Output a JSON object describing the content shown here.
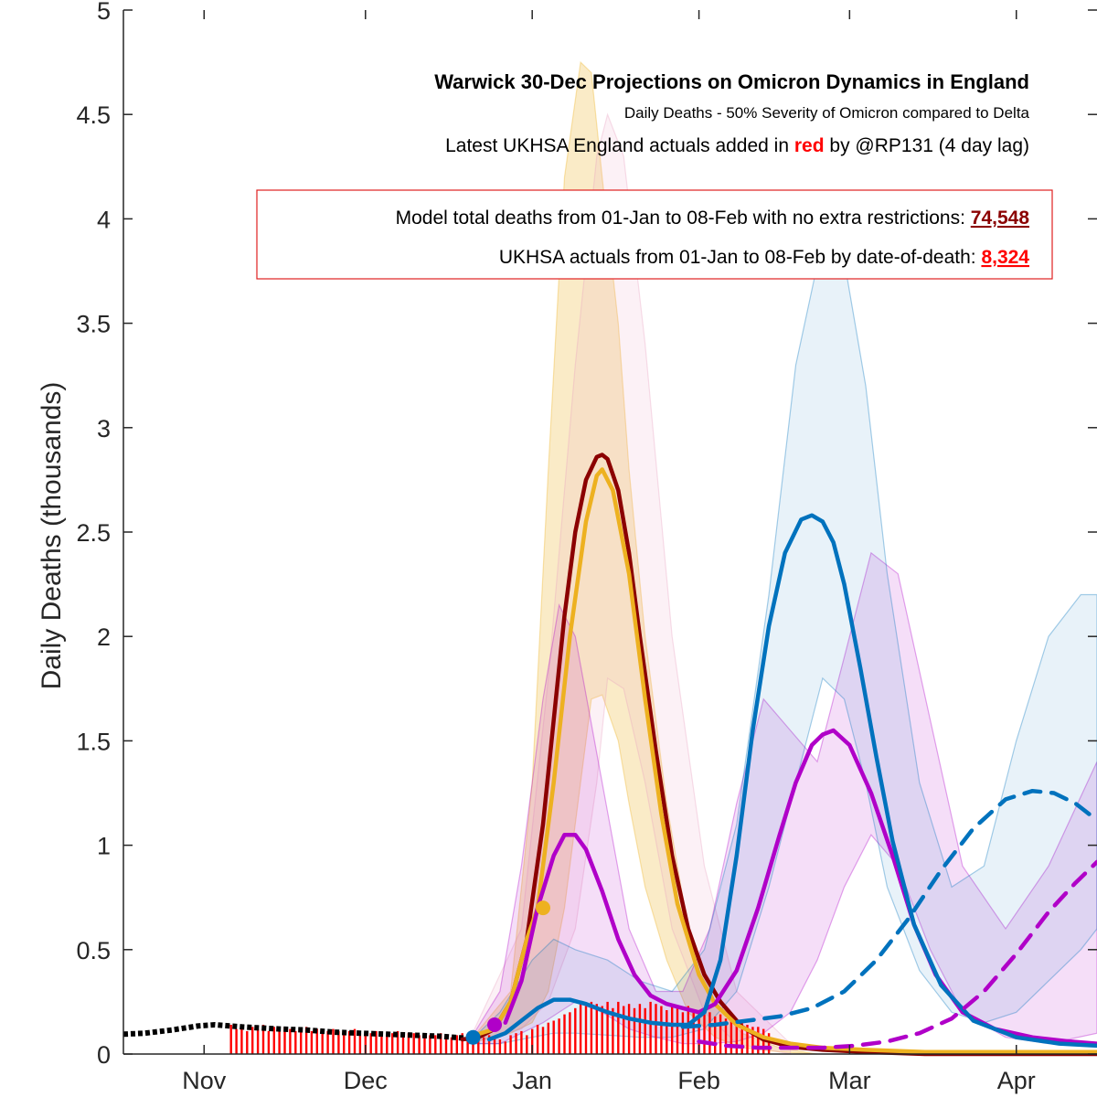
{
  "chart_data": {
    "type": "line",
    "title": "Warwick 30-Dec Projections on Omicron Dynamics in England",
    "subtitle": "Daily Deaths - 50% Severity of Omicron compared to Delta",
    "note": {
      "before": "Latest UKHSA England actuals added in ",
      "highlight": "red",
      "after": " by @RP131 (4 day lag)"
    },
    "summary": {
      "model_label": "Model total deaths from 01-Jan to 08-Feb with no extra restrictions: ",
      "model_value": "74,548",
      "actual_label": "UKHSA actuals from 01-Jan to 08-Feb by date-of-death: ",
      "actual_value": "8,324"
    },
    "xlabel": "",
    "ylabel": "Daily Deaths (thousands)",
    "ylim": [
      0,
      5
    ],
    "yticks": [
      0,
      0.5,
      1,
      1.5,
      2,
      2.5,
      3,
      3.5,
      4,
      4.5,
      5
    ],
    "ytick_labels": [
      "0",
      "0.5",
      "1",
      "1.5",
      "2",
      "2.5",
      "3",
      "3.5",
      "4",
      "4.5",
      "5"
    ],
    "x_unit": "days since 1 Oct 2021",
    "xlim": [
      16,
      197
    ],
    "xticks": [
      31,
      61,
      92,
      123,
      151,
      182
    ],
    "xtick_labels": [
      "Nov",
      "Dec",
      "Jan",
      "Feb",
      "Mar",
      "Apr"
    ],
    "grid": false,
    "colors": {
      "dark_red": "#8b0000",
      "orange": "#edb120",
      "blue": "#0072bd",
      "purple": "#b000c8",
      "actuals": "#ff0000",
      "historic": "#000000"
    },
    "historic_series": {
      "name": "historic (black)",
      "x": [
        16,
        20,
        25,
        30,
        33,
        38,
        45,
        50,
        55,
        60,
        65,
        70,
        75,
        80,
        82
      ],
      "values": [
        0.095,
        0.1,
        0.115,
        0.135,
        0.14,
        0.13,
        0.12,
        0.115,
        0.105,
        0.1,
        0.095,
        0.09,
        0.085,
        0.075,
        0.07
      ]
    },
    "actuals_bars": {
      "name": "UKHSA actuals (red)",
      "x_start": 36,
      "values": [
        0.14,
        0.12,
        0.14,
        0.11,
        0.13,
        0.12,
        0.14,
        0.11,
        0.13,
        0.12,
        0.13,
        0.12,
        0.11,
        0.12,
        0.13,
        0.11,
        0.12,
        0.12,
        0.11,
        0.12,
        0.11,
        0.1,
        0.11,
        0.12,
        0.1,
        0.11,
        0.1,
        0.11,
        0.1,
        0.09,
        0.1,
        0.11,
        0.09,
        0.1,
        0.1,
        0.09,
        0.1,
        0.09,
        0.09,
        0.1,
        0.09,
        0.08,
        0.09,
        0.1,
        0.08,
        0.08,
        0.07,
        0.08,
        0.09,
        0.08,
        0.07,
        0.06,
        0.09,
        0.1,
        0.11,
        0.09,
        0.12,
        0.14,
        0.13,
        0.15,
        0.16,
        0.17,
        0.19,
        0.2,
        0.22,
        0.24,
        0.23,
        0.25,
        0.24,
        0.23,
        0.25,
        0.22,
        0.25,
        0.23,
        0.24,
        0.22,
        0.24,
        0.22,
        0.25,
        0.24,
        0.23,
        0.21,
        0.24,
        0.22,
        0.2,
        0.23,
        0.2,
        0.21,
        0.19,
        0.2,
        0.18,
        0.19,
        0.17,
        0.18,
        0.16,
        0.15,
        0.14,
        0.13,
        0.13,
        0.12,
        0.1
      ]
    },
    "bands": [
      {
        "color": "#edb120",
        "opacity": 0.25,
        "x": [
          80,
          88,
          92,
          95,
          98,
          101,
          103,
          105,
          108,
          110,
          113,
          117,
          121,
          126,
          131,
          138,
          145
        ],
        "upper": [
          0.05,
          0.3,
          1.3,
          2.8,
          4.2,
          4.75,
          4.7,
          4.2,
          3.5,
          2.8,
          2.0,
          1.2,
          0.6,
          0.25,
          0.1,
          0.03,
          0.0
        ],
        "lower": [
          0.05,
          0.1,
          0.15,
          0.3,
          0.7,
          1.3,
          1.7,
          1.72,
          1.5,
          1.2,
          0.8,
          0.45,
          0.2,
          0.08,
          0.03,
          0.01,
          0.0
        ]
      },
      {
        "color": "#e8a0c0",
        "opacity": 0.15,
        "x": [
          80,
          90,
          95,
          100,
          104,
          106,
          109,
          113,
          118,
          124,
          130,
          140
        ],
        "upper": [
          0.05,
          0.6,
          1.8,
          3.3,
          4.3,
          4.5,
          4.3,
          3.4,
          2.0,
          0.9,
          0.3,
          0.05
        ],
        "lower": [
          0.05,
          0.12,
          0.25,
          0.6,
          1.3,
          1.8,
          1.75,
          1.3,
          0.6,
          0.2,
          0.05,
          0.0
        ]
      },
      {
        "color": "#b000c8",
        "opacity": 0.13,
        "x": [
          80,
          86,
          90,
          94,
          97,
          100,
          105,
          110,
          115,
          120,
          125,
          130,
          135,
          140,
          145,
          150,
          155,
          160,
          166,
          172,
          180,
          188,
          197
        ],
        "upper": [
          0.05,
          0.3,
          0.9,
          1.7,
          2.15,
          2.0,
          1.3,
          0.6,
          0.3,
          0.3,
          0.6,
          1.2,
          1.7,
          1.55,
          1.4,
          1.9,
          2.4,
          2.3,
          1.6,
          0.9,
          0.6,
          0.9,
          1.4
        ],
        "lower": [
          0.05,
          0.05,
          0.1,
          0.15,
          0.2,
          0.25,
          0.2,
          0.12,
          0.08,
          0.05,
          0.05,
          0.06,
          0.1,
          0.2,
          0.45,
          0.8,
          1.05,
          0.9,
          0.5,
          0.2,
          0.08,
          0.05,
          0.1
        ]
      },
      {
        "color": "#0072bd",
        "opacity": 0.09,
        "x": [
          80,
          86,
          92,
          96,
          100,
          106,
          112,
          118,
          124,
          130,
          136,
          141,
          146,
          150,
          154,
          158,
          164,
          170,
          176,
          182,
          188,
          194,
          197
        ],
        "upper": [
          0.05,
          0.2,
          0.45,
          0.55,
          0.5,
          0.45,
          0.35,
          0.3,
          0.5,
          1.1,
          2.2,
          3.3,
          3.9,
          3.8,
          3.2,
          2.3,
          1.3,
          0.8,
          0.9,
          1.5,
          2.0,
          2.2,
          2.2
        ],
        "lower": [
          0.05,
          0.05,
          0.08,
          0.1,
          0.1,
          0.09,
          0.08,
          0.08,
          0.12,
          0.3,
          0.8,
          1.3,
          1.8,
          1.7,
          1.3,
          0.8,
          0.4,
          0.2,
          0.15,
          0.2,
          0.35,
          0.5,
          0.6
        ]
      }
    ],
    "series": [
      {
        "name": "dark red",
        "color": "#8b0000",
        "dash": false,
        "x": [
          79,
          82,
          85,
          88,
          91,
          94,
          96,
          98,
          100,
          102,
          104,
          105,
          106,
          108,
          110,
          112,
          115,
          118,
          121,
          124,
          127,
          131,
          135,
          140,
          146,
          154,
          165,
          180,
          197
        ],
        "values": [
          0.07,
          0.08,
          0.12,
          0.25,
          0.55,
          1.1,
          1.6,
          2.1,
          2.5,
          2.75,
          2.86,
          2.87,
          2.85,
          2.7,
          2.4,
          2.0,
          1.45,
          0.95,
          0.6,
          0.38,
          0.25,
          0.13,
          0.07,
          0.035,
          0.02,
          0.01,
          0.0,
          0.0,
          0.0
        ]
      },
      {
        "name": "orange",
        "color": "#edb120",
        "dash": false,
        "x": [
          80,
          85,
          88,
          91,
          93,
          96,
          99,
          102,
          104,
          105,
          107,
          110,
          113,
          116,
          119,
          123,
          126,
          130,
          135,
          140,
          146,
          154,
          165,
          180,
          197
        ],
        "values": [
          0.08,
          0.12,
          0.25,
          0.55,
          0.7,
          1.3,
          2.0,
          2.55,
          2.77,
          2.8,
          2.7,
          2.3,
          1.7,
          1.15,
          0.72,
          0.38,
          0.24,
          0.14,
          0.08,
          0.05,
          0.03,
          0.02,
          0.01,
          0.01,
          0.01
        ]
      },
      {
        "name": "purple",
        "color": "#b000c8",
        "dash": false,
        "x": [
          87,
          90,
          93,
          96,
          98,
          100,
          102,
          105,
          108,
          111,
          114,
          117,
          120,
          123,
          126,
          130,
          134,
          138,
          141,
          144,
          146,
          148,
          151,
          155,
          159,
          163,
          167,
          172,
          178,
          185,
          192,
          197
        ],
        "values": [
          0.15,
          0.35,
          0.7,
          0.95,
          1.05,
          1.05,
          0.98,
          0.78,
          0.55,
          0.38,
          0.28,
          0.24,
          0.22,
          0.2,
          0.24,
          0.4,
          0.7,
          1.05,
          1.3,
          1.48,
          1.53,
          1.55,
          1.48,
          1.25,
          0.95,
          0.62,
          0.38,
          0.2,
          0.12,
          0.08,
          0.06,
          0.05
        ]
      },
      {
        "name": "blue",
        "color": "#0072bd",
        "dash": false,
        "x": [
          84,
          87,
          90,
          93,
          96,
          99,
          102,
          106,
          110,
          114,
          118,
          121,
          124,
          127,
          130,
          133,
          136,
          139,
          142,
          144,
          146,
          148,
          150,
          153,
          156,
          159,
          163,
          168,
          174,
          182,
          190,
          197
        ],
        "values": [
          0.07,
          0.1,
          0.16,
          0.22,
          0.26,
          0.26,
          0.24,
          0.2,
          0.17,
          0.15,
          0.14,
          0.14,
          0.2,
          0.45,
          0.95,
          1.55,
          2.05,
          2.4,
          2.56,
          2.58,
          2.55,
          2.45,
          2.25,
          1.85,
          1.42,
          1.02,
          0.62,
          0.33,
          0.16,
          0.08,
          0.05,
          0.04
        ]
      },
      {
        "name": "blue dashed",
        "color": "#0072bd",
        "dash": true,
        "x": [
          120,
          126,
          132,
          138,
          144,
          150,
          156,
          162,
          168,
          174,
          180,
          185,
          189,
          193,
          197
        ],
        "values": [
          0.13,
          0.14,
          0.16,
          0.18,
          0.22,
          0.3,
          0.45,
          0.65,
          0.88,
          1.08,
          1.22,
          1.26,
          1.25,
          1.2,
          1.12
        ]
      },
      {
        "name": "purple dashed",
        "color": "#b000c8",
        "dash": true,
        "x": [
          123,
          128,
          134,
          140,
          146,
          152,
          158,
          164,
          170,
          176,
          182,
          188,
          193,
          197
        ],
        "values": [
          0.06,
          0.04,
          0.03,
          0.03,
          0.03,
          0.04,
          0.06,
          0.1,
          0.17,
          0.3,
          0.48,
          0.68,
          0.82,
          0.92
        ]
      }
    ],
    "markers": [
      {
        "x": 94,
        "value": 0.7,
        "color": "#edb120"
      },
      {
        "x": 85,
        "value": 0.14,
        "color": "#b000c8"
      },
      {
        "x": 81,
        "value": 0.08,
        "color": "#0072bd"
      }
    ]
  }
}
